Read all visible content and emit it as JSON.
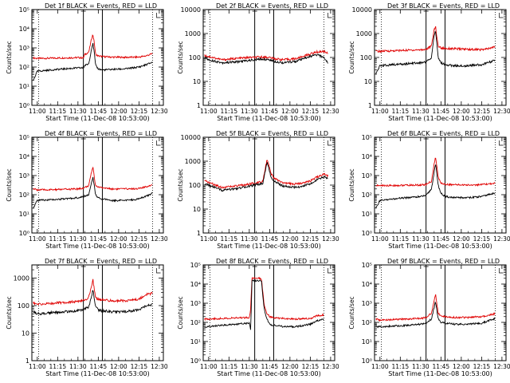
{
  "colors": {
    "events": "#000000",
    "lld": "#e00000",
    "axis": "#000000",
    "background": "#ffffff"
  },
  "xaxis": {
    "xlabel": "Start Time (11-Dec-08 10:53:00)",
    "ticks": [
      "11:00",
      "11:15",
      "11:30",
      "11:45",
      "12:00",
      "12:15",
      "12:30"
    ],
    "tick_minutes": [
      0,
      15,
      30,
      45,
      60,
      75,
      90
    ],
    "xlim": [
      -4,
      93
    ],
    "dotted_minutes": [
      1,
      85
    ],
    "solid_minutes": [
      34,
      48
    ]
  },
  "ylabel": "Counts/sec",
  "chart_data": [
    {
      "type": "line",
      "title": "Det 1f BLACK = Events, RED = LLD",
      "yscale": "log",
      "ylim": [
        1,
        100000
      ],
      "tick_labels": [
        "10⁰",
        "10¹",
        "10²",
        "10³",
        "10⁴",
        "10⁵"
      ],
      "tick_values": [
        1,
        10,
        100,
        1000,
        10000,
        100000
      ],
      "x": [
        -3,
        0,
        10,
        20,
        30,
        34,
        35,
        38,
        40,
        41,
        42,
        43,
        45,
        48,
        55,
        65,
        75,
        80,
        85
      ],
      "series": [
        {
          "color": "red",
          "values": [
            300,
            280,
            290,
            300,
            310,
            300,
            450,
            600,
            3000,
            5000,
            2000,
            450,
            380,
            350,
            330,
            320,
            330,
            380,
            500
          ]
        },
        {
          "color": "black",
          "values": [
            20,
            60,
            70,
            80,
            90,
            90,
            120,
            150,
            900,
            1800,
            600,
            120,
            80,
            70,
            75,
            80,
            100,
            130,
            180
          ]
        }
      ]
    },
    {
      "type": "line",
      "title": "Det 2f BLACK = Events, RED = LLD",
      "yscale": "log",
      "ylim": [
        1,
        10000
      ],
      "tick_labels": [
        "1",
        "10",
        "100",
        "1000",
        "10000"
      ],
      "tick_values": [
        1,
        10,
        100,
        1000,
        10000
      ],
      "x": [
        -3,
        0,
        10,
        20,
        30,
        34,
        40,
        45,
        48,
        55,
        65,
        75,
        80,
        85,
        88
      ],
      "series": [
        {
          "color": "red",
          "values": [
            120,
            110,
            80,
            90,
            100,
            100,
            105,
            100,
            90,
            80,
            90,
            140,
            170,
            180,
            150
          ]
        },
        {
          "color": "black",
          "values": [
            100,
            80,
            60,
            65,
            75,
            80,
            85,
            80,
            70,
            60,
            70,
            110,
            130,
            100,
            60
          ]
        }
      ]
    },
    {
      "type": "line",
      "title": "Det 3f BLACK = Events, RED = LLD",
      "yscale": "log",
      "ylim": [
        1,
        10000
      ],
      "tick_labels": [
        "1",
        "10",
        "100",
        "1000",
        "10000"
      ],
      "tick_values": [
        1,
        10,
        100,
        1000,
        10000
      ],
      "x": [
        -3,
        0,
        10,
        20,
        30,
        34,
        38,
        40,
        41,
        42,
        43,
        45,
        48,
        55,
        65,
        75,
        80,
        85
      ],
      "series": [
        {
          "color": "red",
          "values": [
            180,
            180,
            190,
            200,
            210,
            220,
            300,
            1500,
            2000,
            700,
            300,
            250,
            240,
            230,
            220,
            210,
            230,
            280
          ]
        },
        {
          "color": "black",
          "values": [
            20,
            45,
            50,
            55,
            60,
            65,
            100,
            900,
            1300,
            400,
            90,
            60,
            50,
            45,
            45,
            50,
            60,
            80
          ]
        }
      ]
    },
    {
      "type": "line",
      "title": "Det 4f BLACK = Events, RED = LLD",
      "yscale": "log",
      "ylim": [
        1,
        100000
      ],
      "tick_labels": [
        "10⁰",
        "10¹",
        "10²",
        "10³",
        "10⁴",
        "10⁵"
      ],
      "tick_values": [
        1,
        10,
        100,
        1000,
        10000,
        100000
      ],
      "x": [
        -3,
        0,
        10,
        20,
        30,
        34,
        38,
        40,
        41,
        42,
        43,
        45,
        48,
        55,
        65,
        75,
        80,
        85
      ],
      "series": [
        {
          "color": "red",
          "values": [
            200,
            180,
            180,
            190,
            200,
            220,
            300,
            1500,
            3000,
            900,
            300,
            250,
            230,
            200,
            200,
            210,
            250,
            350
          ]
        },
        {
          "color": "black",
          "values": [
            20,
            50,
            55,
            60,
            70,
            80,
            100,
            400,
            900,
            300,
            100,
            70,
            60,
            50,
            50,
            60,
            80,
            120
          ]
        }
      ]
    },
    {
      "type": "line",
      "title": "Det 5f BLACK = Events, RED = LLD",
      "yscale": "log",
      "ylim": [
        1,
        10000
      ],
      "tick_labels": [
        "1",
        "10",
        "100",
        "1000",
        "10000"
      ],
      "tick_values": [
        1,
        10,
        100,
        1000,
        10000
      ],
      "x": [
        -3,
        0,
        10,
        20,
        30,
        34,
        40,
        42,
        43,
        44,
        46,
        48,
        55,
        65,
        75,
        80,
        85,
        88
      ],
      "series": [
        {
          "color": "red",
          "values": [
            150,
            130,
            80,
            90,
            110,
            120,
            150,
            600,
            1100,
            800,
            300,
            200,
            120,
            110,
            150,
            220,
            280,
            250
          ]
        },
        {
          "color": "black",
          "values": [
            110,
            100,
            60,
            70,
            90,
            100,
            120,
            450,
            900,
            600,
            220,
            150,
            90,
            80,
            110,
            170,
            220,
            200
          ]
        }
      ]
    },
    {
      "type": "line",
      "title": "Det 6f BLACK = Events, RED = LLD",
      "yscale": "log",
      "ylim": [
        1,
        100000
      ],
      "tick_labels": [
        "10⁰",
        "10¹",
        "10²",
        "10³",
        "10⁴",
        "10⁵"
      ],
      "tick_values": [
        1,
        10,
        100,
        1000,
        10000,
        100000
      ],
      "x": [
        -3,
        0,
        10,
        20,
        30,
        34,
        38,
        40,
        41,
        42,
        43,
        45,
        48,
        55,
        65,
        75,
        80,
        85
      ],
      "series": [
        {
          "color": "red",
          "values": [
            300,
            300,
            300,
            310,
            320,
            340,
            500,
            4000,
            9000,
            3000,
            800,
            400,
            350,
            330,
            320,
            330,
            360,
            400
          ]
        },
        {
          "color": "black",
          "values": [
            20,
            50,
            60,
            70,
            80,
            90,
            200,
            1500,
            4000,
            1200,
            300,
            120,
            80,
            70,
            70,
            80,
            100,
            120
          ]
        }
      ]
    },
    {
      "type": "line",
      "title": "Det 7f BLACK = Events, RED = LLD",
      "yscale": "log",
      "ylim": [
        1,
        3000
      ],
      "tick_labels": [
        "1",
        "10",
        "100",
        "1000"
      ],
      "tick_values": [
        1,
        10,
        100,
        1000
      ],
      "x": [
        -3,
        0,
        10,
        20,
        30,
        34,
        38,
        40,
        41,
        42,
        43,
        45,
        48,
        55,
        65,
        75,
        80,
        85
      ],
      "series": [
        {
          "color": "red",
          "values": [
            130,
            110,
            120,
            130,
            140,
            150,
            200,
            500,
            900,
            400,
            200,
            170,
            160,
            150,
            150,
            170,
            250,
            280
          ]
        },
        {
          "color": "black",
          "values": [
            60,
            50,
            55,
            60,
            65,
            70,
            90,
            200,
            400,
            180,
            90,
            70,
            65,
            60,
            60,
            70,
            100,
            110
          ]
        }
      ]
    },
    {
      "type": "line",
      "title": "Det 8f BLACK = Events, RED = LLD",
      "yscale": "log",
      "ylim": [
        1,
        100000
      ],
      "tick_labels": [
        "10⁰",
        "10¹",
        "10²",
        "10³",
        "10⁴",
        "10⁵"
      ],
      "tick_values": [
        1,
        10,
        100,
        1000,
        10000,
        100000
      ],
      "x": [
        -3,
        0,
        10,
        20,
        30,
        31,
        32,
        38,
        39,
        41,
        43,
        45,
        48,
        55,
        65,
        75,
        80,
        85
      ],
      "series": [
        {
          "color": "red",
          "values": [
            150,
            150,
            160,
            170,
            180,
            500,
            20000,
            20000,
            18000,
            800,
            300,
            200,
            170,
            160,
            150,
            160,
            220,
            250
          ]
        },
        {
          "color": "black",
          "values": [
            50,
            60,
            70,
            80,
            90,
            40,
            15000,
            15000,
            13000,
            500,
            150,
            80,
            70,
            60,
            60,
            80,
            120,
            150
          ]
        }
      ]
    },
    {
      "type": "line",
      "title": "Det 9f BLACK = Events, RED = LLD",
      "yscale": "log",
      "ylim": [
        1,
        100000
      ],
      "tick_labels": [
        "10⁰",
        "10¹",
        "10²",
        "10³",
        "10⁴",
        "10⁵"
      ],
      "tick_values": [
        1,
        10,
        100,
        1000,
        10000,
        100000
      ],
      "x": [
        -3,
        0,
        10,
        20,
        30,
        34,
        38,
        40,
        41,
        42,
        43,
        45,
        48,
        55,
        65,
        75,
        80,
        85
      ],
      "series": [
        {
          "color": "red",
          "values": [
            150,
            130,
            140,
            150,
            160,
            180,
            300,
            1500,
            3000,
            900,
            300,
            220,
            200,
            180,
            180,
            200,
            240,
            280
          ]
        },
        {
          "color": "black",
          "values": [
            60,
            60,
            65,
            70,
            80,
            90,
            150,
            600,
            1200,
            400,
            150,
            100,
            90,
            80,
            80,
            90,
            120,
            160
          ]
        }
      ]
    }
  ]
}
